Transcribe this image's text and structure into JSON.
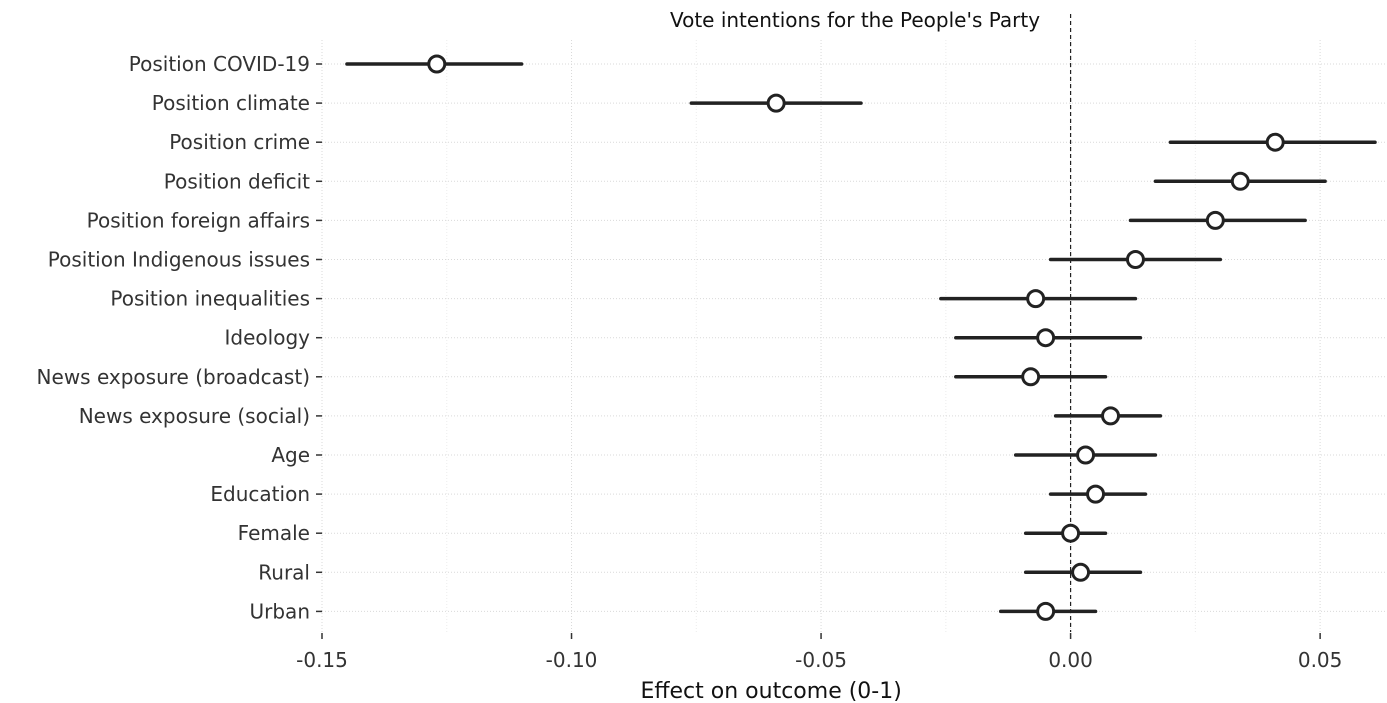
{
  "chart_data": {
    "type": "scatter",
    "subtype": "coefficient-plot",
    "title": "Vote intentions for the People's Party",
    "xlabel": "Effect on outcome (0-1)",
    "ylabel": "",
    "xlim": [
      -0.15,
      0.063
    ],
    "xticks": [
      -0.15,
      -0.1,
      -0.05,
      0.0,
      0.05
    ],
    "xtick_labels": [
      "-0.15",
      "-0.10",
      "-0.05",
      "0.00",
      "0.05"
    ],
    "reference_line": 0.0,
    "grid": true,
    "legend": "none",
    "categories": [
      "Position COVID-19",
      "Position climate",
      "Position crime",
      "Position deficit",
      "Position foreign affairs",
      "Position Indigenous issues",
      "Position inequalities",
      "Ideology",
      "News exposure (broadcast)",
      "News exposure (social)",
      "Age",
      "Education",
      "Female",
      "Rural",
      "Urban"
    ],
    "estimates": [
      -0.127,
      -0.059,
      0.041,
      0.034,
      0.029,
      0.013,
      -0.007,
      -0.005,
      -0.008,
      0.008,
      0.003,
      0.005,
      0.0,
      0.002,
      -0.005
    ],
    "ci_low": [
      -0.145,
      -0.076,
      0.02,
      0.017,
      0.012,
      -0.004,
      -0.026,
      -0.023,
      -0.023,
      -0.003,
      -0.011,
      -0.004,
      -0.009,
      -0.009,
      -0.014
    ],
    "ci_high": [
      -0.11,
      -0.042,
      0.061,
      0.051,
      0.047,
      0.03,
      0.013,
      0.014,
      0.007,
      0.018,
      0.017,
      0.015,
      0.007,
      0.014,
      0.005
    ],
    "colors": {
      "marker_fill": "#ffffff",
      "line": "#222222",
      "grid": "#d9d9d9"
    }
  }
}
